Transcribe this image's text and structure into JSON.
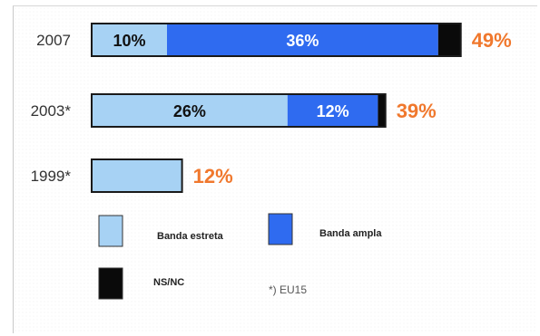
{
  "chart_data": {
    "type": "bar",
    "orientation": "horizontal",
    "stacked": true,
    "title": "",
    "xlabel": "",
    "ylabel": "",
    "grid": false,
    "legend_position": "bottom",
    "categories": [
      "2007",
      "2003*",
      "1999*"
    ],
    "series": [
      {
        "name": "Banda estreta",
        "values": [
          10,
          26,
          12
        ],
        "labels": [
          "10%",
          "26%",
          ""
        ],
        "color": "#a7d2f4",
        "label_color": "#111111"
      },
      {
        "name": "Banda ampla",
        "values": [
          36,
          12,
          0
        ],
        "labels": [
          "36%",
          "12%",
          ""
        ],
        "color": "#2f6bf0",
        "label_color": "#ffffff"
      },
      {
        "name": "NS/NC",
        "values": [
          3,
          1,
          0
        ],
        "labels": [
          "",
          "",
          ""
        ],
        "color": "#0a0a0a",
        "label_color": "#ffffff"
      }
    ],
    "totals": [
      "49%",
      "39%",
      "12%"
    ],
    "total_color": "#f0782d",
    "note": "*) EU15"
  },
  "legend": {
    "items": [
      {
        "label": "Banda estreta",
        "color": "#a7d2f4"
      },
      {
        "label": "Banda ampla",
        "color": "#2f6bf0"
      },
      {
        "label": "NS/NC",
        "color": "#0a0a0a"
      }
    ],
    "note": "*) EU15"
  }
}
